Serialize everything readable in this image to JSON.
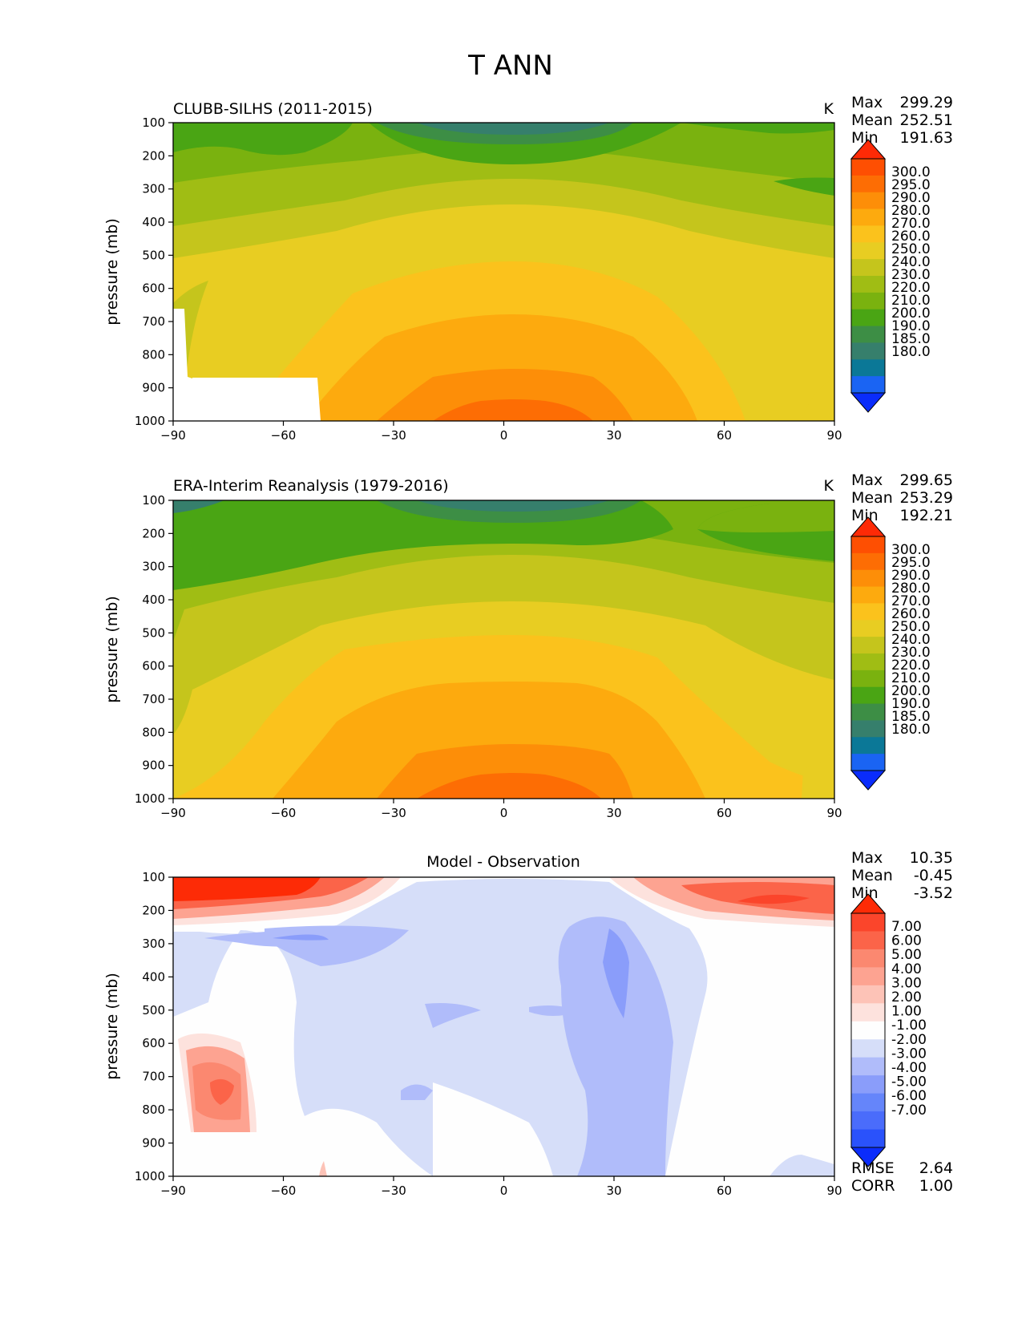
{
  "figure_title": "T ANN",
  "colors": {
    "abs_levels": [
      "#0a2cfb",
      "#1a64f3",
      "#0b7897",
      "#367f6c",
      "#3d8e45",
      "#4aa514",
      "#7ab20f",
      "#a0bd14",
      "#c5c51c",
      "#e8cd22",
      "#fbc21c",
      "#fdaa0e",
      "#fd8e08",
      "#fd6d04",
      "#fe4f02",
      "#fe2a06"
    ],
    "diff_levels": [
      "#0b2cfb",
      "#2a52fb",
      "#4a6cfb",
      "#6585fa",
      "#8a9dfa",
      "#b0bcfa",
      "#d6def9",
      "#fefefe",
      "#fde2dd",
      "#fdc3b7",
      "#fda391",
      "#fb8870",
      "#fb6449",
      "#fb452b",
      "#fd2b06"
    ]
  },
  "chart_data": [
    {
      "type": "heatmap",
      "id": "model",
      "title": "CLUBB-SILHS (2011-2015)",
      "units": "K",
      "ylabel": "pressure (mb)",
      "xlim": [
        -90,
        90
      ],
      "ylim": [
        1000,
        100
      ],
      "xticks": [
        -90,
        -60,
        -30,
        0,
        30,
        60,
        90
      ],
      "xtick_labels": [
        "−90",
        "−60",
        "−30",
        "0",
        "30",
        "60",
        "90"
      ],
      "yticks": [
        100,
        200,
        300,
        400,
        500,
        600,
        700,
        800,
        900,
        1000
      ],
      "stats": [
        {
          "label": "Max",
          "value": "299.29"
        },
        {
          "label": "Mean",
          "value": "252.51"
        },
        {
          "label": "Min",
          "value": "191.63"
        }
      ],
      "colorbar": {
        "labels": [
          "300.0",
          "295.0",
          "290.0",
          "280.0",
          "270.0",
          "260.0",
          "250.0",
          "240.0",
          "230.0",
          "220.0",
          "210.0",
          "200.0",
          "190.0",
          "185.0",
          "180.0"
        ],
        "extend": "both"
      }
    },
    {
      "type": "heatmap",
      "id": "obs",
      "title": "ERA-Interim Reanalysis (1979-2016)",
      "units": "K",
      "ylabel": "pressure (mb)",
      "xlim": [
        -90,
        90
      ],
      "ylim": [
        1000,
        100
      ],
      "xticks": [
        -90,
        -60,
        -30,
        0,
        30,
        60,
        90
      ],
      "xtick_labels": [
        "−90",
        "−60",
        "−30",
        "0",
        "30",
        "60",
        "90"
      ],
      "yticks": [
        100,
        200,
        300,
        400,
        500,
        600,
        700,
        800,
        900,
        1000
      ],
      "stats": [
        {
          "label": "Max",
          "value": "299.65"
        },
        {
          "label": "Mean",
          "value": "253.29"
        },
        {
          "label": "Min",
          "value": "192.21"
        }
      ],
      "colorbar": {
        "labels": [
          "300.0",
          "295.0",
          "290.0",
          "280.0",
          "270.0",
          "260.0",
          "250.0",
          "240.0",
          "230.0",
          "220.0",
          "210.0",
          "200.0",
          "190.0",
          "185.0",
          "180.0"
        ],
        "extend": "both"
      }
    },
    {
      "type": "heatmap",
      "id": "diff",
      "title": "Model - Observation",
      "units": "",
      "ylabel": "pressure (mb)",
      "xlim": [
        -90,
        90
      ],
      "ylim": [
        1000,
        100
      ],
      "xticks": [
        -90,
        -60,
        -30,
        0,
        30,
        60,
        90
      ],
      "xtick_labels": [
        "−90",
        "−60",
        "−30",
        "0",
        "30",
        "60",
        "90"
      ],
      "yticks": [
        100,
        200,
        300,
        400,
        500,
        600,
        700,
        800,
        900,
        1000
      ],
      "stats": [
        {
          "label": "Max",
          "value": "10.35"
        },
        {
          "label": "Mean",
          "value": "-0.45"
        },
        {
          "label": "Min",
          "value": "-3.52"
        }
      ],
      "extra_stats": [
        {
          "label": "RMSE",
          "value": "2.64"
        },
        {
          "label": "CORR",
          "value": "1.00"
        }
      ],
      "colorbar": {
        "labels": [
          "7.00",
          "6.00",
          "5.00",
          "4.00",
          "3.00",
          "2.00",
          "1.00",
          "-1.00",
          "-2.00",
          "-3.00",
          "-4.00",
          "-5.00",
          "-6.00",
          "-7.00"
        ],
        "extend": "both"
      }
    }
  ]
}
